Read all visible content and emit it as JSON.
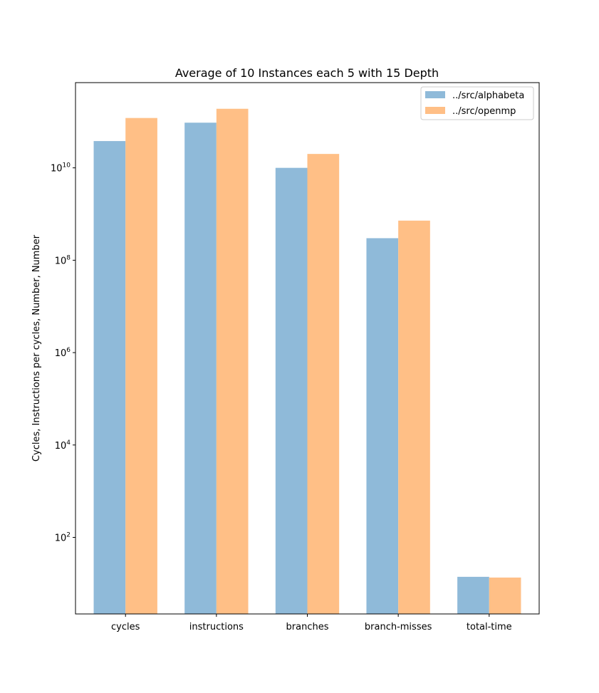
{
  "chart_data": {
    "type": "bar",
    "title": "Average of 10 Instances each 5 with 15 Depth",
    "xlabel": "",
    "ylabel": "Cycles, Instructions per cycles, Number, Number",
    "yscale": "log",
    "ylim": [
      2.2,
      700000000000
    ],
    "yticks": [
      {
        "value": 100,
        "base": "10",
        "exp": "2"
      },
      {
        "value": 10000,
        "base": "10",
        "exp": "4"
      },
      {
        "value": 1000000,
        "base": "10",
        "exp": "6"
      },
      {
        "value": 100000000,
        "base": "10",
        "exp": "8"
      },
      {
        "value": 10000000000,
        "base": "10",
        "exp": "10"
      }
    ],
    "categories": [
      "cycles",
      "instructions",
      "branches",
      "branch-misses",
      "total-time"
    ],
    "series": [
      {
        "name": "../src/alphabeta",
        "color": "#8fbad9",
        "values": [
          38000000000,
          95000000000,
          10000000000,
          300000000,
          14
        ]
      },
      {
        "name": "../src/openmp",
        "color": "#ffbf86",
        "values": [
          120000000000,
          190000000000,
          20000000000,
          720000000,
          13.5
        ]
      }
    ],
    "legend_position": "top-right",
    "grid": false
  }
}
